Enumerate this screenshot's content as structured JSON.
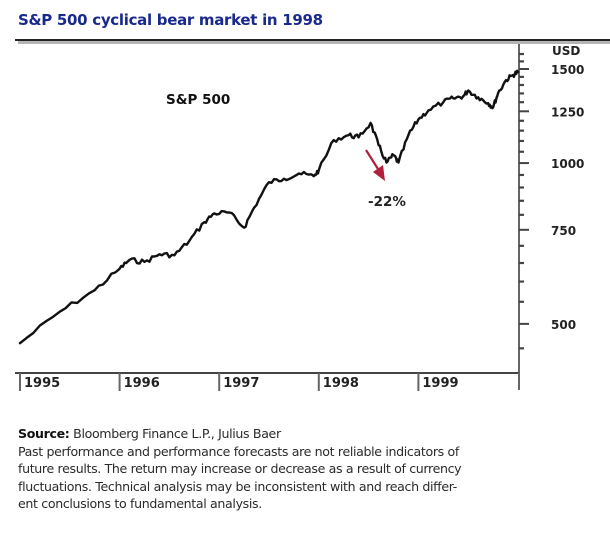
{
  "chart_data": {
    "type": "line",
    "title": "S&P 500 cyclical bear market in 1998",
    "series": [
      {
        "name": "S&P 500",
        "x": [
          1995.0,
          1995.4,
          1995.75,
          1996.0,
          1996.1,
          1996.25,
          1996.4,
          1996.55,
          1996.7,
          1996.85,
          1996.95,
          1997.1,
          1997.25,
          1997.35,
          1997.5,
          1997.65,
          1997.8,
          1997.95,
          1998.0,
          1998.15,
          1998.3,
          1998.4,
          1998.52,
          1998.6,
          1998.68,
          1998.75,
          1998.8,
          1998.9,
          1999.0,
          1999.1,
          1999.25,
          1999.35,
          1999.45,
          1999.5,
          1999.6,
          1999.7,
          1999.75,
          1999.8,
          1999.88,
          1999.95,
          2000.0
        ],
        "values": [
          460,
          527,
          578,
          634,
          659,
          653,
          675,
          672,
          715,
          775,
          805,
          808,
          757,
          825,
          921,
          935,
          956,
          945,
          970,
          1104,
          1128,
          1117,
          1189,
          1080,
          1002,
          1035,
          1002,
          1128,
          1207,
          1255,
          1300,
          1322,
          1334,
          1367,
          1328,
          1295,
          1272,
          1352,
          1430,
          1462,
          1481
        ]
      }
    ],
    "series_label": "S&P 500",
    "annotation": {
      "text": "-22%",
      "arrow_from": [
        1998.45,
        1080
      ],
      "arrow_to": [
        1998.65,
        960
      ],
      "color": "#b0203c"
    },
    "xlabel": "",
    "ylabel": "USD",
    "y_scale": "log",
    "ylim": [
      440,
      1650
    ],
    "xlim": [
      1995.0,
      2000.0
    ],
    "y_ticks": [
      500,
      750,
      1000,
      1250,
      1500
    ],
    "y_tick_labels": [
      "500",
      "750",
      "1000",
      "1250",
      "1500"
    ],
    "x_ticks": [
      1995,
      1996,
      1997,
      1998,
      1999
    ],
    "x_tick_labels": [
      "1995",
      "1996",
      "1997",
      "1998",
      "1999"
    ],
    "grid": false,
    "legend": "none"
  },
  "footer": {
    "source_label": "Source:",
    "source_text": " Bloomberg Finance L.P., Julius Baer",
    "disclaimer_lines": [
      "Past performance and performance forecasts are not reliable indicators of",
      "future results. The return may increase or decrease as a result of currency",
      "fluctuations. Technical analysis may be inconsistent with and reach differ-",
      "ent conclusions to fundamental analysis."
    ]
  },
  "colors": {
    "title": "#1a2a8c",
    "line": "#111111",
    "annotation_arrow": "#b0203c",
    "axis": "#555555"
  }
}
